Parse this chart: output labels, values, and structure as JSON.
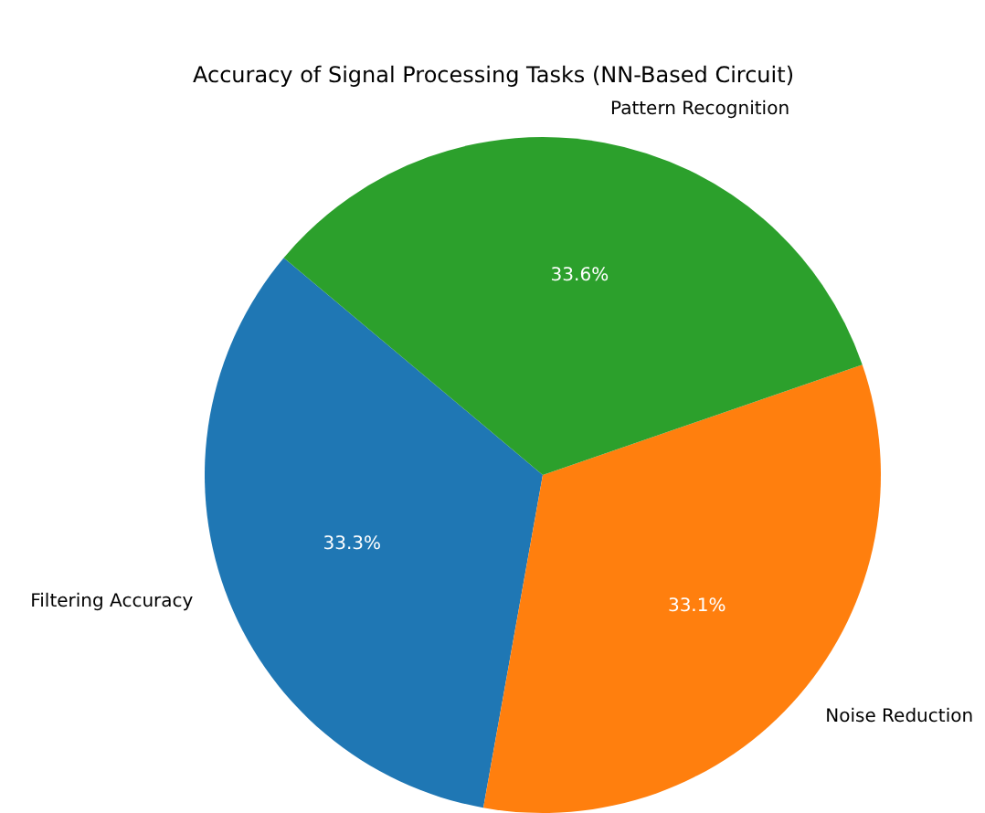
{
  "chart_data": {
    "type": "pie",
    "title": "Accuracy of Signal Processing Tasks (NN-Based Circuit)",
    "categories": [
      "Filtering Accuracy",
      "Noise Reduction",
      "Pattern Recognition"
    ],
    "values": [
      33.3,
      33.1,
      33.6
    ],
    "colors": [
      "#1f77b4",
      "#ff7f0e",
      "#2ca02c"
    ],
    "value_labels": [
      "33.3%",
      "33.1%",
      "33.6%"
    ],
    "legend": false
  }
}
